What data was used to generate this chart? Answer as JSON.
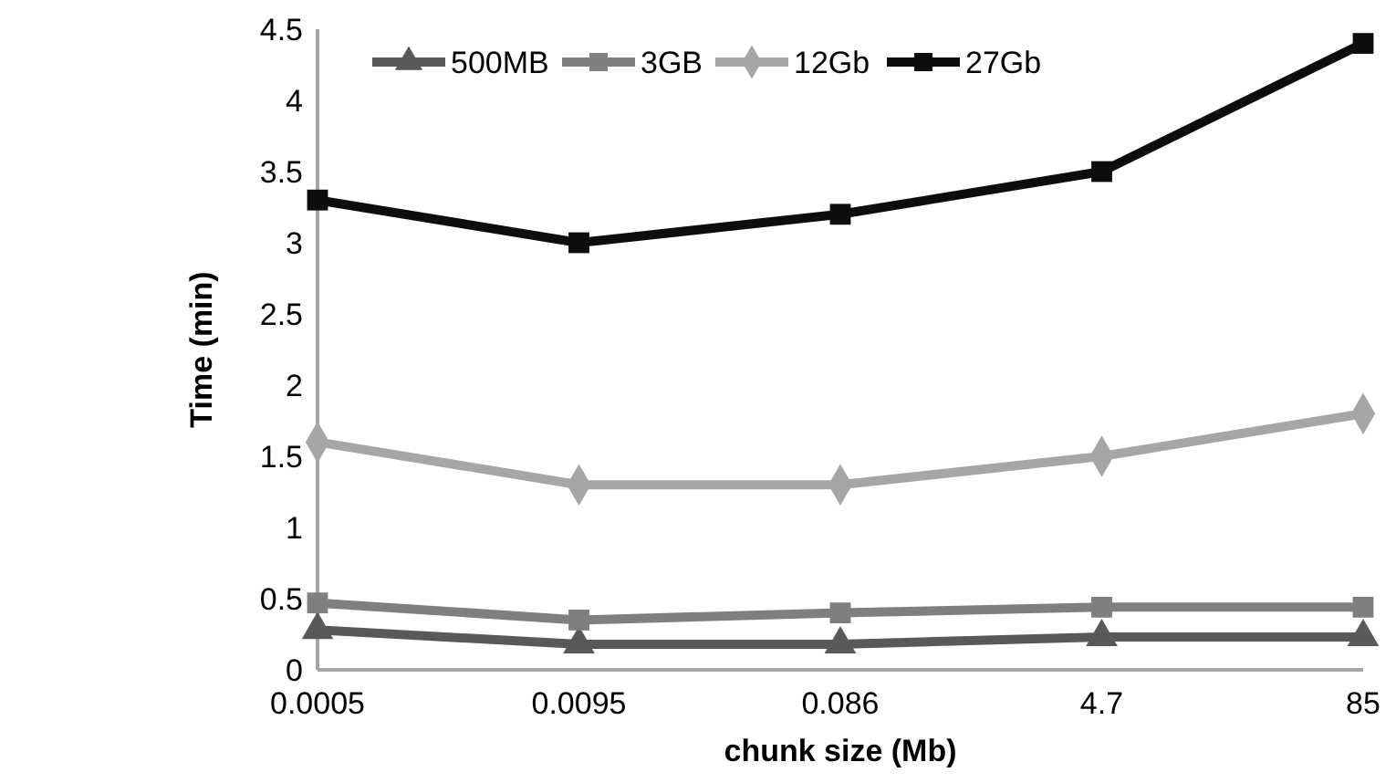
{
  "chart_data": {
    "type": "line",
    "xlabel": "chunk size (Mb)",
    "ylabel": "Time (min)",
    "categories": [
      "0.0005",
      "0.0095",
      "0.086",
      "4.7",
      "85"
    ],
    "ylim": [
      0,
      4.5
    ],
    "yticks": [
      0,
      0.5,
      1,
      1.5,
      2,
      2.5,
      3,
      3.5,
      4,
      4.5
    ],
    "grid": false,
    "legend": "top",
    "series": [
      {
        "name": "500MB",
        "color": "#595959",
        "marker": "triangle",
        "values": [
          0.28,
          0.18,
          0.18,
          0.23,
          0.23
        ]
      },
      {
        "name": "3GB",
        "color": "#7f7f7f",
        "marker": "square",
        "values": [
          0.47,
          0.35,
          0.4,
          0.44,
          0.44
        ]
      },
      {
        "name": "12Gb",
        "color": "#a6a6a6",
        "marker": "diamond",
        "values": [
          1.6,
          1.3,
          1.3,
          1.5,
          1.8
        ]
      },
      {
        "name": "27Gb",
        "color": "#0d0d0d",
        "marker": "square",
        "values": [
          3.3,
          3.0,
          3.2,
          3.5,
          4.4
        ]
      }
    ]
  }
}
